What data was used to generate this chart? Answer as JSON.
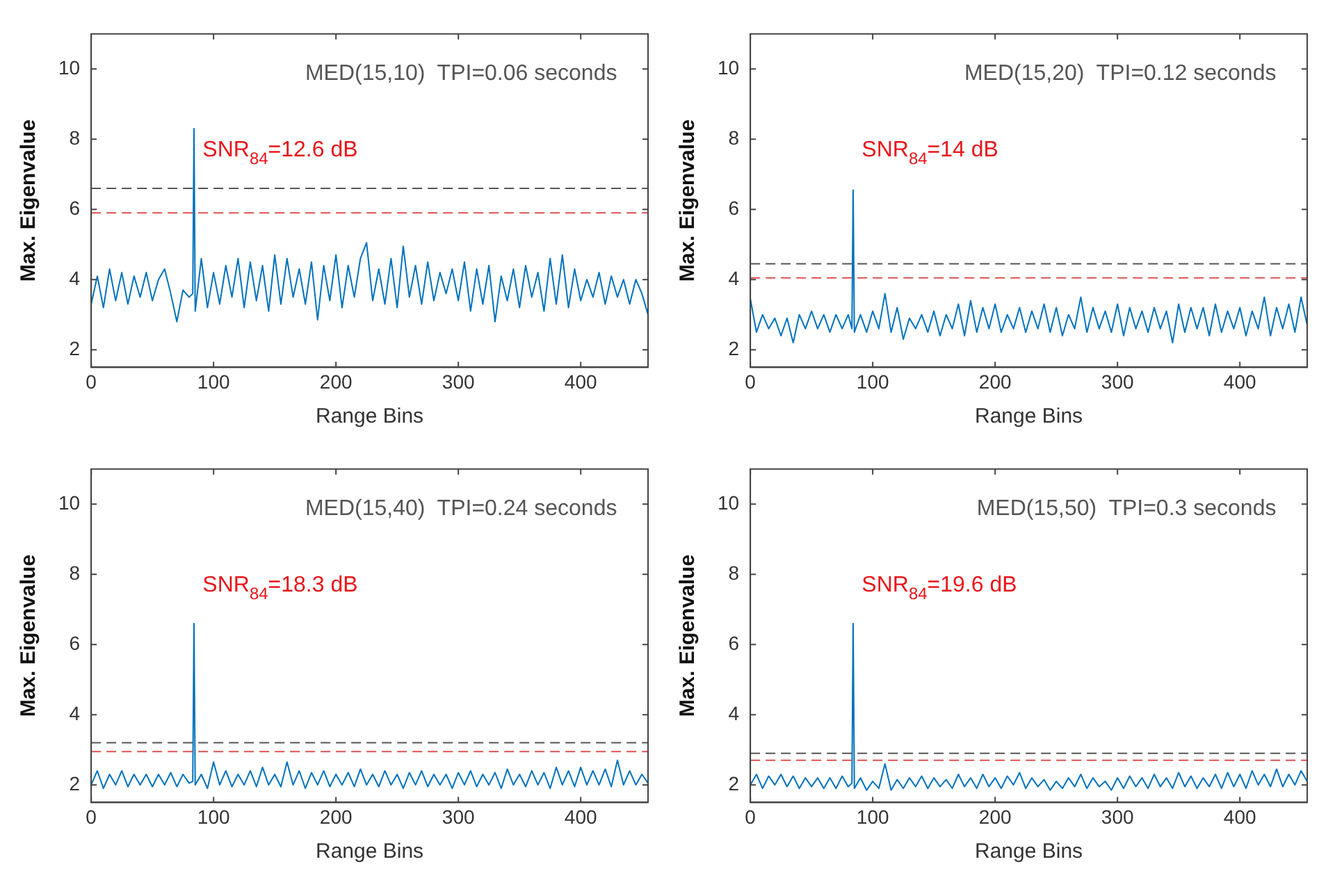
{
  "chart_data": [
    {
      "type": "line",
      "xlabel": "Range Bins",
      "ylabel": "Max. Eigenvalue",
      "xlim": [
        0,
        455
      ],
      "xticks": [
        0,
        100,
        200,
        300,
        400
      ],
      "ylim": [
        1.5,
        11
      ],
      "yticks": [
        2,
        4,
        6,
        8,
        10
      ],
      "marker": "none",
      "line_style": "solid",
      "x": [
        0,
        5,
        10,
        15,
        20,
        25,
        30,
        35,
        40,
        45,
        50,
        55,
        60,
        65,
        70,
        75,
        80,
        83,
        84,
        85,
        90,
        95,
        100,
        105,
        110,
        115,
        120,
        125,
        130,
        135,
        140,
        145,
        150,
        155,
        160,
        165,
        170,
        175,
        180,
        185,
        190,
        195,
        200,
        205,
        210,
        215,
        220,
        225,
        230,
        235,
        240,
        245,
        250,
        255,
        260,
        265,
        270,
        275,
        280,
        285,
        290,
        295,
        300,
        305,
        310,
        315,
        320,
        325,
        330,
        335,
        340,
        345,
        350,
        355,
        360,
        365,
        370,
        375,
        380,
        385,
        390,
        395,
        400,
        405,
        410,
        415,
        420,
        425,
        430,
        435,
        440,
        445,
        450,
        455
      ],
      "series": [
        {
          "color": "#0072bd",
          "values": [
            3.3,
            4.1,
            3.2,
            4.3,
            3.4,
            4.2,
            3.3,
            4.1,
            3.5,
            4.2,
            3.4,
            4.0,
            4.3,
            3.6,
            2.8,
            3.7,
            3.5,
            3.6,
            8.3,
            3.1,
            4.6,
            3.2,
            4.2,
            3.3,
            4.4,
            3.5,
            4.6,
            3.2,
            4.5,
            3.4,
            4.4,
            3.1,
            4.7,
            3.3,
            4.6,
            3.5,
            4.3,
            3.3,
            4.5,
            2.85,
            4.4,
            3.4,
            4.7,
            3.2,
            4.4,
            3.5,
            4.6,
            5.05,
            3.4,
            4.3,
            3.3,
            4.6,
            3.2,
            4.95,
            3.5,
            4.4,
            3.3,
            4.5,
            3.4,
            4.2,
            3.6,
            4.3,
            3.4,
            4.5,
            3.1,
            4.3,
            3.3,
            4.4,
            2.8,
            4.1,
            3.4,
            4.3,
            3.2,
            4.4,
            3.5,
            4.2,
            3.1,
            4.6,
            3.3,
            4.7,
            3.2,
            4.3,
            3.4,
            4.0,
            3.5,
            4.2,
            3.3,
            4.1,
            3.5,
            4.0,
            3.3,
            4.0,
            3.6,
            3.0
          ]
        }
      ],
      "ref_lines": [
        {
          "axis": "y",
          "value": 6.6,
          "color": "#555555",
          "line_style": "dashed"
        },
        {
          "axis": "y",
          "value": 5.9,
          "color": "#e05050",
          "line_style": "dashed"
        }
      ],
      "annotations": [
        "MED(15,10)  TPI=0.06 seconds",
        "SNR$_{84}$=12.6 dB"
      ]
    },
    {
      "type": "line",
      "xlabel": "Range Bins",
      "ylabel": "Max. Eigenvalue",
      "xlim": [
        0,
        455
      ],
      "xticks": [
        0,
        100,
        200,
        300,
        400
      ],
      "ylim": [
        1.5,
        11
      ],
      "yticks": [
        2,
        4,
        6,
        8,
        10
      ],
      "marker": "none",
      "line_style": "solid",
      "x": [
        0,
        5,
        10,
        15,
        20,
        25,
        30,
        35,
        40,
        45,
        50,
        55,
        60,
        65,
        70,
        75,
        80,
        83,
        84,
        85,
        90,
        95,
        100,
        105,
        110,
        115,
        120,
        125,
        130,
        135,
        140,
        145,
        150,
        155,
        160,
        165,
        170,
        175,
        180,
        185,
        190,
        195,
        200,
        205,
        210,
        215,
        220,
        225,
        230,
        235,
        240,
        245,
        250,
        255,
        260,
        265,
        270,
        275,
        280,
        285,
        290,
        295,
        300,
        305,
        310,
        315,
        320,
        325,
        330,
        335,
        340,
        345,
        350,
        355,
        360,
        365,
        370,
        375,
        380,
        385,
        390,
        395,
        400,
        405,
        410,
        415,
        420,
        425,
        430,
        435,
        440,
        445,
        450,
        455
      ],
      "series": [
        {
          "color": "#0072bd",
          "values": [
            3.45,
            2.5,
            3.0,
            2.6,
            2.9,
            2.4,
            2.9,
            2.2,
            3.0,
            2.6,
            3.1,
            2.6,
            3.0,
            2.5,
            3.0,
            2.6,
            3.0,
            2.6,
            6.55,
            2.5,
            3.0,
            2.5,
            3.1,
            2.6,
            3.6,
            2.5,
            3.2,
            2.3,
            2.9,
            2.6,
            3.0,
            2.5,
            3.1,
            2.4,
            3.0,
            2.6,
            3.3,
            2.4,
            3.4,
            2.5,
            3.2,
            2.6,
            3.3,
            2.5,
            3.0,
            2.6,
            3.2,
            2.5,
            3.1,
            2.6,
            3.3,
            2.5,
            3.2,
            2.4,
            3.0,
            2.6,
            3.5,
            2.5,
            3.2,
            2.6,
            3.1,
            2.5,
            3.3,
            2.4,
            3.2,
            2.6,
            3.1,
            2.5,
            3.2,
            2.6,
            3.1,
            2.2,
            3.3,
            2.5,
            3.2,
            2.6,
            3.2,
            2.4,
            3.3,
            2.5,
            3.1,
            2.6,
            3.2,
            2.4,
            3.1,
            2.6,
            3.5,
            2.4,
            3.2,
            2.6,
            3.3,
            2.5,
            3.5,
            2.7
          ]
        }
      ],
      "ref_lines": [
        {
          "axis": "y",
          "value": 4.45,
          "color": "#555555",
          "line_style": "dashed"
        },
        {
          "axis": "y",
          "value": 4.05,
          "color": "#e05050",
          "line_style": "dashed"
        }
      ],
      "annotations": [
        "MED(15,20)  TPI=0.12 seconds",
        "SNR$_{84}$=14 dB"
      ]
    },
    {
      "type": "line",
      "xlabel": "Range Bins",
      "ylabel": "Max. Eigenvalue",
      "xlim": [
        0,
        455
      ],
      "xticks": [
        0,
        100,
        200,
        300,
        400
      ],
      "ylim": [
        1.5,
        11
      ],
      "yticks": [
        2,
        4,
        6,
        8,
        10
      ],
      "marker": "none",
      "line_style": "solid",
      "x": [
        0,
        5,
        10,
        15,
        20,
        25,
        30,
        35,
        40,
        45,
        50,
        55,
        60,
        65,
        70,
        75,
        80,
        83,
        84,
        85,
        90,
        95,
        100,
        105,
        110,
        115,
        120,
        125,
        130,
        135,
        140,
        145,
        150,
        155,
        160,
        165,
        170,
        175,
        180,
        185,
        190,
        195,
        200,
        205,
        210,
        215,
        220,
        225,
        230,
        235,
        240,
        245,
        250,
        255,
        260,
        265,
        270,
        275,
        280,
        285,
        290,
        295,
        300,
        305,
        310,
        315,
        320,
        325,
        330,
        335,
        340,
        345,
        350,
        355,
        360,
        365,
        370,
        375,
        380,
        385,
        390,
        395,
        400,
        405,
        410,
        415,
        420,
        425,
        430,
        435,
        440,
        445,
        450,
        455
      ],
      "series": [
        {
          "color": "#0072bd",
          "values": [
            2.0,
            2.4,
            1.9,
            2.3,
            2.0,
            2.4,
            1.95,
            2.3,
            2.0,
            2.3,
            1.95,
            2.3,
            2.0,
            2.35,
            1.95,
            2.3,
            2.05,
            2.1,
            6.6,
            2.0,
            2.3,
            1.9,
            2.65,
            2.0,
            2.4,
            1.95,
            2.3,
            2.0,
            2.4,
            1.95,
            2.5,
            2.0,
            2.3,
            1.95,
            2.65,
            2.0,
            2.4,
            1.9,
            2.35,
            2.0,
            2.4,
            1.95,
            2.3,
            2.0,
            2.35,
            1.95,
            2.45,
            2.0,
            2.3,
            1.95,
            2.4,
            2.0,
            2.3,
            1.9,
            2.35,
            2.0,
            2.4,
            1.95,
            2.3,
            2.0,
            2.3,
            1.9,
            2.35,
            2.0,
            2.4,
            1.95,
            2.3,
            2.0,
            2.35,
            1.9,
            2.45,
            2.0,
            2.3,
            1.95,
            2.4,
            2.0,
            2.35,
            1.9,
            2.5,
            2.0,
            2.4,
            1.95,
            2.5,
            2.0,
            2.4,
            2.0,
            2.45,
            1.95,
            2.7,
            2.0,
            2.4,
            2.0,
            2.3,
            2.05
          ]
        }
      ],
      "ref_lines": [
        {
          "axis": "y",
          "value": 3.2,
          "color": "#555555",
          "line_style": "dashed"
        },
        {
          "axis": "y",
          "value": 2.95,
          "color": "#e05050",
          "line_style": "dashed"
        }
      ],
      "annotations": [
        "MED(15,40)  TPI=0.24 seconds",
        "SNR$_{84}$=18.3 dB"
      ]
    },
    {
      "type": "line",
      "xlabel": "Range Bins",
      "ylabel": "Max. Eigenvalue",
      "xlim": [
        0,
        455
      ],
      "xticks": [
        0,
        100,
        200,
        300,
        400
      ],
      "ylim": [
        1.5,
        11
      ],
      "yticks": [
        2,
        4,
        6,
        8,
        10
      ],
      "marker": "none",
      "line_style": "solid",
      "x": [
        0,
        5,
        10,
        15,
        20,
        25,
        30,
        35,
        40,
        45,
        50,
        55,
        60,
        65,
        70,
        75,
        80,
        83,
        84,
        85,
        90,
        95,
        100,
        105,
        110,
        115,
        120,
        125,
        130,
        135,
        140,
        145,
        150,
        155,
        160,
        165,
        170,
        175,
        180,
        185,
        190,
        195,
        200,
        205,
        210,
        215,
        220,
        225,
        230,
        235,
        240,
        245,
        250,
        255,
        260,
        265,
        270,
        275,
        280,
        285,
        290,
        295,
        300,
        305,
        310,
        315,
        320,
        325,
        330,
        335,
        340,
        345,
        350,
        355,
        360,
        365,
        370,
        375,
        380,
        385,
        390,
        395,
        400,
        405,
        410,
        415,
        420,
        425,
        430,
        435,
        440,
        445,
        450,
        455
      ],
      "series": [
        {
          "color": "#0072bd",
          "values": [
            2.0,
            2.3,
            1.9,
            2.25,
            2.0,
            2.3,
            1.95,
            2.25,
            1.9,
            2.2,
            1.95,
            2.2,
            1.9,
            2.2,
            1.9,
            2.25,
            1.95,
            2.05,
            6.6,
            1.9,
            2.2,
            1.85,
            2.1,
            1.9,
            2.6,
            1.85,
            2.15,
            1.9,
            2.2,
            1.95,
            2.25,
            1.9,
            2.2,
            1.95,
            2.15,
            1.9,
            2.3,
            1.95,
            2.2,
            1.9,
            2.3,
            1.95,
            2.2,
            1.9,
            2.25,
            2.0,
            2.35,
            1.9,
            2.2,
            1.95,
            2.15,
            1.85,
            2.1,
            1.9,
            2.2,
            1.95,
            2.3,
            1.9,
            2.2,
            1.95,
            2.1,
            1.85,
            2.2,
            1.9,
            2.25,
            1.95,
            2.2,
            1.9,
            2.3,
            1.95,
            2.2,
            1.9,
            2.35,
            1.95,
            2.25,
            1.9,
            2.2,
            1.95,
            2.3,
            1.9,
            2.35,
            1.95,
            2.3,
            1.9,
            2.4,
            2.0,
            2.3,
            1.95,
            2.45,
            1.95,
            2.3,
            2.0,
            2.4,
            2.1
          ]
        }
      ],
      "ref_lines": [
        {
          "axis": "y",
          "value": 2.9,
          "color": "#555555",
          "line_style": "dashed"
        },
        {
          "axis": "y",
          "value": 2.7,
          "color": "#e05050",
          "line_style": "dashed"
        }
      ],
      "annotations": [
        "MED(15,50)  TPI=0.3 seconds",
        "SNR$_{84}$=19.6 dB"
      ]
    }
  ]
}
